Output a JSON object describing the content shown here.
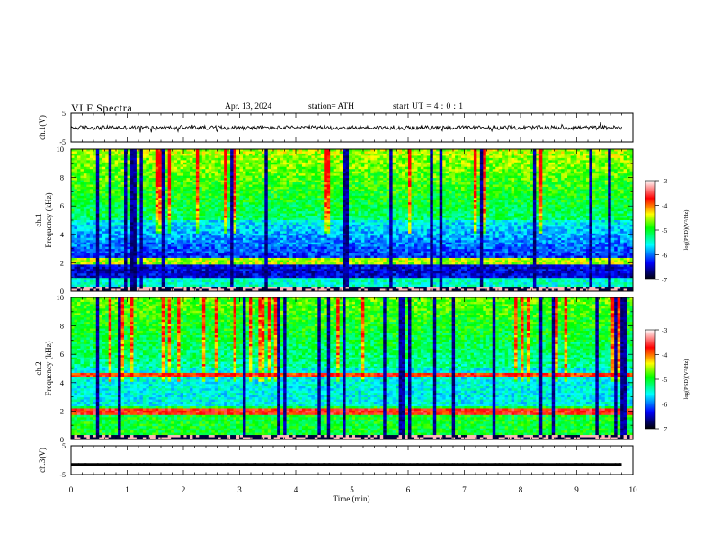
{
  "header": {
    "title": "VLF  Spectra",
    "date": "Apr. 13, 2024",
    "station": "station= ATH",
    "start_ut": "start  UT  =   4  : 0   : 1"
  },
  "chart_data": [
    {
      "type": "line",
      "panel": "ch1-waveform",
      "ylabel": "ch.1(V)",
      "ytick_labels": [
        "5",
        "-5"
      ],
      "ylim": [
        -5,
        5
      ],
      "xlim": [
        0,
        10
      ],
      "x_extent_end": 9.8,
      "baseline": 0.0,
      "color": "#000000"
    },
    {
      "type": "heatmap",
      "panel": "ch1-spectrogram",
      "ylabel_lines": [
        "ch.1",
        "Frequency  (kHz)"
      ],
      "ytick_labels": [
        "0",
        "2",
        "4",
        "6",
        "8",
        "10"
      ],
      "ylim": [
        0,
        10
      ],
      "xlim": [
        0,
        10
      ],
      "colorbar": {
        "label": "log(PSD)(V²/Hz)",
        "tick_labels": [
          "-3",
          "-4",
          "-5",
          "-6",
          "-7"
        ],
        "range": [
          -7,
          -3
        ],
        "stops": [
          "#000000",
          "#0000ff",
          "#00ffff",
          "#00ff00",
          "#ffff00",
          "#ff0000",
          "#ffffff"
        ]
      }
    },
    {
      "type": "heatmap",
      "panel": "ch2-spectrogram",
      "ylabel_lines": [
        "ch.2",
        "Frequency  (kHz)"
      ],
      "ytick_labels": [
        "0",
        "2",
        "4",
        "6",
        "8",
        "10"
      ],
      "ylim": [
        0,
        10
      ],
      "xlim": [
        0,
        10
      ],
      "colorbar": {
        "label": "log(PSD)(V²/Hz)",
        "tick_labels": [
          "-3",
          "-4",
          "-5",
          "-6",
          "-7"
        ],
        "range": [
          -7,
          -3
        ],
        "stops": [
          "#000000",
          "#0000ff",
          "#00ffff",
          "#00ff00",
          "#ffff00",
          "#ff0000",
          "#ffffff"
        ]
      }
    },
    {
      "type": "line",
      "panel": "ch3-waveform",
      "ylabel": "ch.3(V)",
      "ytick_labels": [
        "5",
        "-5"
      ],
      "ylim": [
        -5,
        5
      ],
      "xlim": [
        0,
        10
      ],
      "x_extent_end": 9.8,
      "baseline": -1.5,
      "color": "#000000"
    }
  ],
  "x_axis": {
    "label": "Time  (min)",
    "tick_labels": [
      "0",
      "1",
      "2",
      "3",
      "4",
      "5",
      "6",
      "7",
      "8",
      "9",
      "10"
    ],
    "range": [
      0,
      10
    ]
  }
}
